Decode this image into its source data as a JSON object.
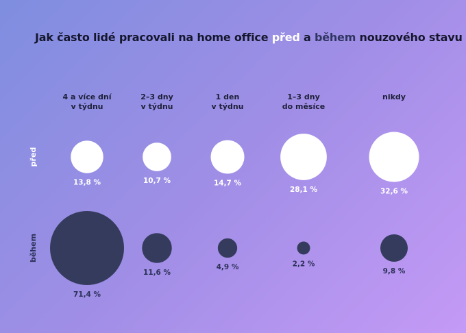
{
  "title": {
    "part1": "Jak často lidé pracovali na home office ",
    "highlight1": "před",
    "part2": " a ",
    "highlight2": "během",
    "part3": " nouzového stavu"
  },
  "colors": {
    "before": "#ffffff",
    "during": "#343b5c",
    "label_before": "#ffffff",
    "label_during": "#2b3158"
  },
  "chart_data": {
    "type": "bubble",
    "title": "Jak často lidé pracovali na home office před a během nouzového stavu",
    "categories": [
      [
        "4 a více dní",
        "v týdnu"
      ],
      [
        "2–3 dny",
        "v týdnu"
      ],
      [
        "1 den",
        "v týdnu"
      ],
      [
        "1–3 dny",
        "do měsíce"
      ],
      [
        "nikdy"
      ]
    ],
    "unit": "%",
    "series": [
      {
        "name": "před",
        "values": [
          13.8,
          10.7,
          14.7,
          28.1,
          32.6
        ],
        "labels": [
          "13,8 %",
          "10,7 %",
          "14,7 %",
          "28,1 %",
          "32,6 %"
        ]
      },
      {
        "name": "během",
        "values": [
          71.4,
          11.6,
          4.9,
          2.2,
          9.8
        ],
        "labels": [
          "71,4 %",
          "11,6 %",
          "4,9 %",
          "2,2 %",
          "9,8 %"
        ]
      }
    ]
  }
}
